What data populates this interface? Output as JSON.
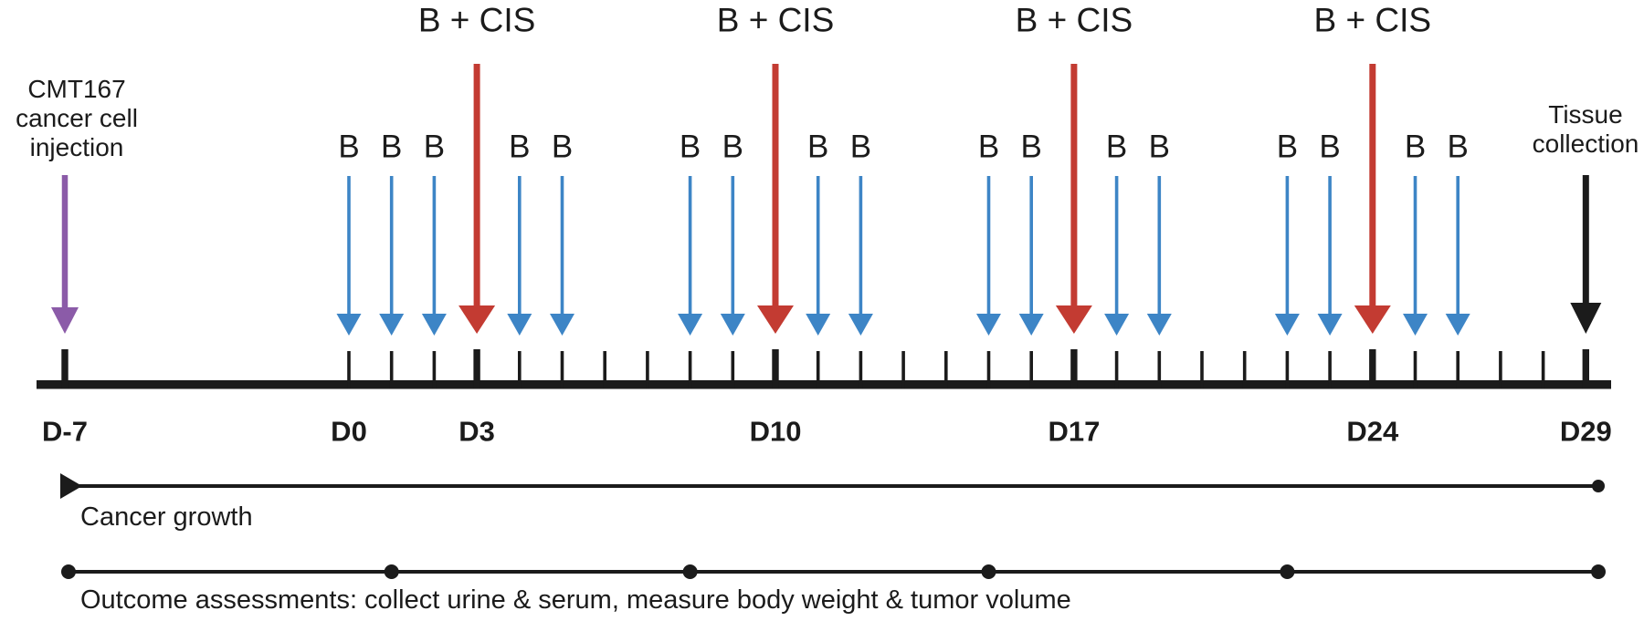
{
  "diagram": {
    "injection": {
      "lines": [
        "CMT167",
        "cancer cell",
        "injection"
      ],
      "day": -7
    },
    "collection": {
      "lines": [
        "Tissue",
        "collection"
      ],
      "day": 29
    },
    "treatments": {
      "b_label": "B",
      "b_cis_label": "B + CIS",
      "b_days": [
        0,
        1,
        2,
        4,
        5,
        8,
        9,
        11,
        12,
        15,
        16,
        18,
        19,
        22,
        23,
        25,
        26
      ],
      "b_cis_days": [
        3,
        10,
        17,
        24
      ]
    },
    "timeline": {
      "tick_start_day": 0,
      "tick_end_day": 29,
      "extra_tick_day": -7,
      "major_tick_days": [
        -7,
        3,
        10,
        17,
        24,
        29
      ],
      "day_labels": [
        {
          "day": -7,
          "label": "D-7"
        },
        {
          "day": 0,
          "label": "D0"
        },
        {
          "day": 3,
          "label": "D3"
        },
        {
          "day": 10,
          "label": "D10"
        },
        {
          "day": 17,
          "label": "D17"
        },
        {
          "day": 24,
          "label": "D24"
        },
        {
          "day": 29,
          "label": "D29"
        }
      ]
    },
    "cancer_growth": {
      "label": "Cancer growth"
    },
    "outcome": {
      "label": "Outcome assessments: collect urine & serum, measure body weight & tumor volume",
      "dot_days": [
        -7,
        1,
        8,
        15,
        22,
        29
      ]
    },
    "colors": {
      "b_arrow": "#3d85c6",
      "b_cis_arrow": "#c33b32",
      "injection_arrow": "#8b5ba8",
      "collection_arrow": "#1b1b1b",
      "ink": "#1b1b1b"
    }
  }
}
